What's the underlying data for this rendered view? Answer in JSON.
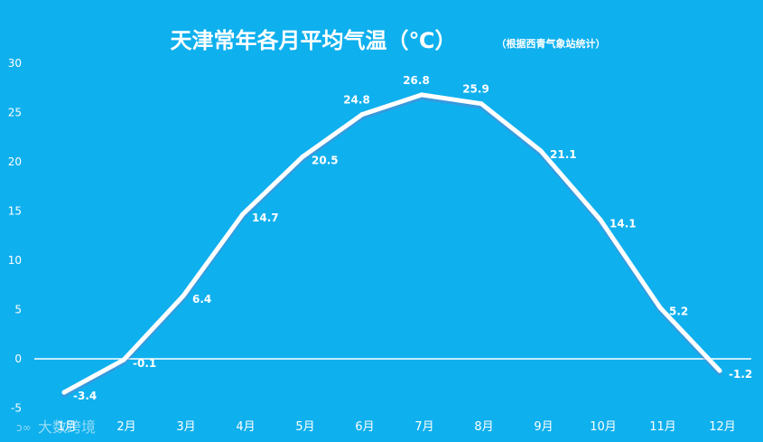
{
  "header": {
    "title": "天津常年各月平均气温（℃）",
    "subtitle": "（根据西青气象站统计）"
  },
  "watermark": {
    "text": "大数跨境"
  },
  "colors": {
    "background": "#0fb0ee",
    "line": "#ffffff",
    "text": "#ffffff"
  },
  "chart_data": {
    "type": "line",
    "title": "天津常年各月平均气温（℃）",
    "subtitle": "（根据西青气象站统计）",
    "categories": [
      "1月",
      "2月",
      "3月",
      "4月",
      "5月",
      "6月",
      "7月",
      "8月",
      "9月",
      "10月",
      "11月",
      "12月"
    ],
    "series": [
      {
        "values": [
          -3.4,
          -0.1,
          6.4,
          14.7,
          20.5,
          24.8,
          26.8,
          25.9,
          21.1,
          14.1,
          5.2,
          -1.2
        ]
      }
    ],
    "data_labels": [
      "-3.4",
      "-0.1",
      "6.4",
      "14.7",
      "20.5",
      "24.8",
      "26.8",
      "25.9",
      "21.1",
      "14.1",
      "5.2",
      "-1.2"
    ],
    "y_ticks": [
      -5,
      0,
      5,
      10,
      15,
      20,
      25,
      30
    ],
    "ylim": [
      -5,
      30
    ],
    "xlabel": "",
    "ylabel": "",
    "grid": false,
    "legend": "none"
  }
}
